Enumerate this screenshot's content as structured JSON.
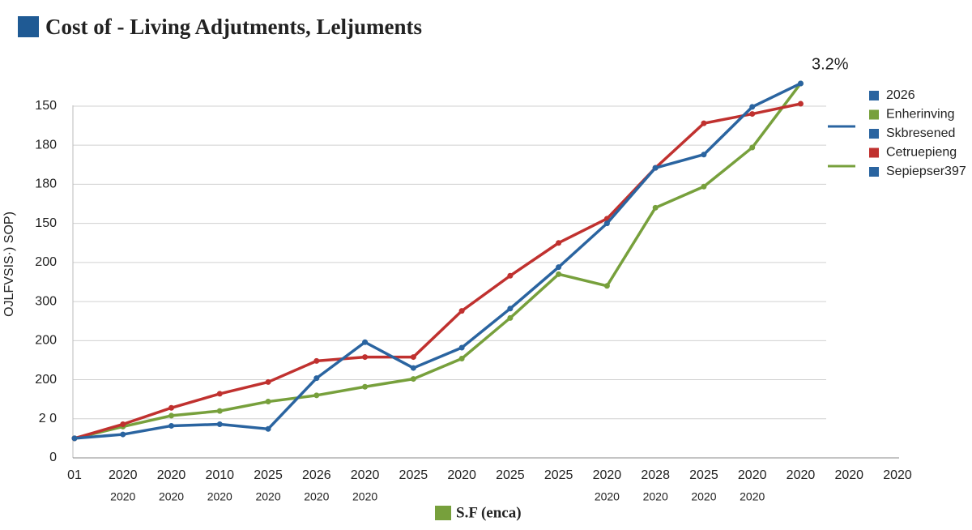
{
  "chart_data": {
    "type": "line",
    "title": "Cost of - Living Adjutments, Leljuments",
    "title_color": "#1f5a94",
    "annotation": "3.2%",
    "y_label": "OJLFVSIS·) SOP)",
    "x_label": "S.F (enca)",
    "x_label_color": "#77a03c",
    "categories": [
      "01",
      "2020",
      "2020",
      "2010",
      "2025",
      "2026",
      "2020",
      "2025",
      "2020",
      "2025",
      "2025",
      "2020",
      "2028",
      "2025",
      "2020",
      "2020",
      "2020",
      "2020"
    ],
    "sublabels": [
      null,
      "2020",
      "2020",
      "2020",
      "2020",
      "2020",
      "2020",
      null,
      null,
      null,
      null,
      "2020",
      "2020",
      "2020",
      "2020",
      null,
      null,
      null
    ],
    "ylim": [
      0,
      480
    ],
    "yticks": [
      0,
      {
        "value": 50,
        "label": "2 0"
      },
      {
        "value": 100,
        "label": "200"
      },
      {
        "value": 150,
        "label": "200"
      },
      {
        "value": 200,
        "label": "300"
      },
      {
        "value": 250,
        "label": "200"
      },
      {
        "value": 300,
        "label": "150"
      },
      {
        "value": 350,
        "label": "180"
      },
      {
        "value": 400,
        "label": "180"
      },
      {
        "value": 450,
        "label": "150"
      }
    ],
    "grid": true,
    "series": [
      {
        "color": "#77a03c",
        "values": [
          25,
          40,
          54,
          60,
          72,
          80,
          91,
          101,
          127,
          179,
          235,
          220,
          320,
          347,
          397,
          479,
          null,
          null
        ]
      },
      {
        "color": "#c0312f",
        "values": [
          25,
          43,
          64,
          82,
          97,
          124,
          129,
          129,
          188,
          233,
          275,
          306,
          371,
          428,
          440,
          453,
          null,
          null
        ]
      },
      {
        "color": "#2a64a0",
        "values": [
          25,
          30,
          41,
          43,
          37,
          102,
          148,
          115,
          141,
          191,
          244,
          300,
          371,
          388,
          449,
          479,
          null,
          null
        ]
      }
    ],
    "legend": [
      {
        "label": "2026",
        "color": "#2a64a0"
      },
      {
        "label": "Enherinving",
        "color": "#77a03c"
      },
      {
        "label": "Skbresened",
        "color": "#2a64a0"
      },
      {
        "label": "Cetruepieng",
        "color": "#c0312f"
      },
      {
        "label": "Sepiepser397",
        "color": "#2a64a0"
      }
    ]
  }
}
